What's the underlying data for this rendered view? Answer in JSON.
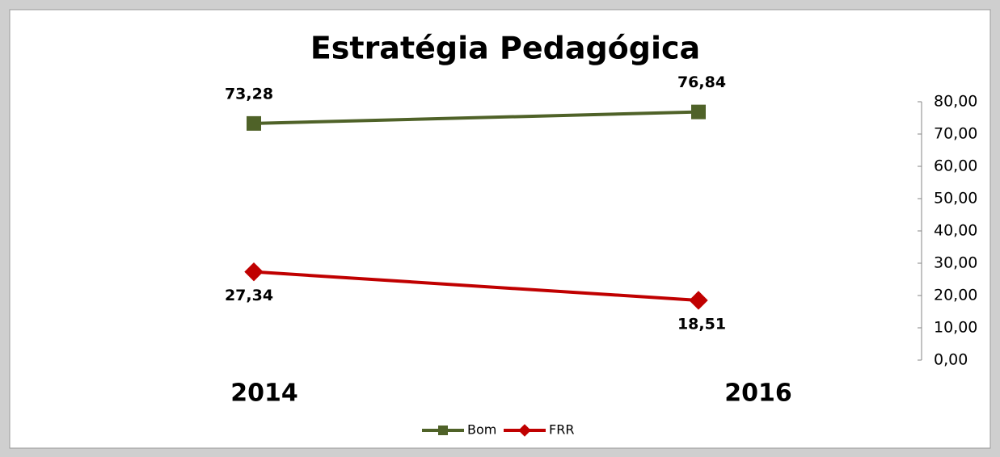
{
  "chart_data": {
    "type": "line",
    "title": "Estratégia Pedagógica",
    "categories": [
      "2014",
      "2016"
    ],
    "series": [
      {
        "name": "Bom",
        "color": "#4f6228",
        "marker": "square",
        "values": [
          73.28,
          76.84
        ],
        "value_labels": [
          "73,28",
          "76,84"
        ]
      },
      {
        "name": "FRR",
        "color": "#c00000",
        "marker": "diamond",
        "values": [
          27.34,
          18.51
        ],
        "value_labels": [
          "27,34",
          "18,51"
        ]
      }
    ],
    "ylim": [
      0,
      80
    ],
    "yticks": [
      {
        "value": 0,
        "label": "0,00"
      },
      {
        "value": 10,
        "label": "10,00"
      },
      {
        "value": 20,
        "label": "20,00"
      },
      {
        "value": 30,
        "label": "30,00"
      },
      {
        "value": 40,
        "label": "40,00"
      },
      {
        "value": 50,
        "label": "50,00"
      },
      {
        "value": 60,
        "label": "60,00"
      },
      {
        "value": 70,
        "label": "70,00"
      },
      {
        "value": 80,
        "label": "80,00"
      }
    ],
    "y_axis_side": "right",
    "legend": "bottom"
  }
}
